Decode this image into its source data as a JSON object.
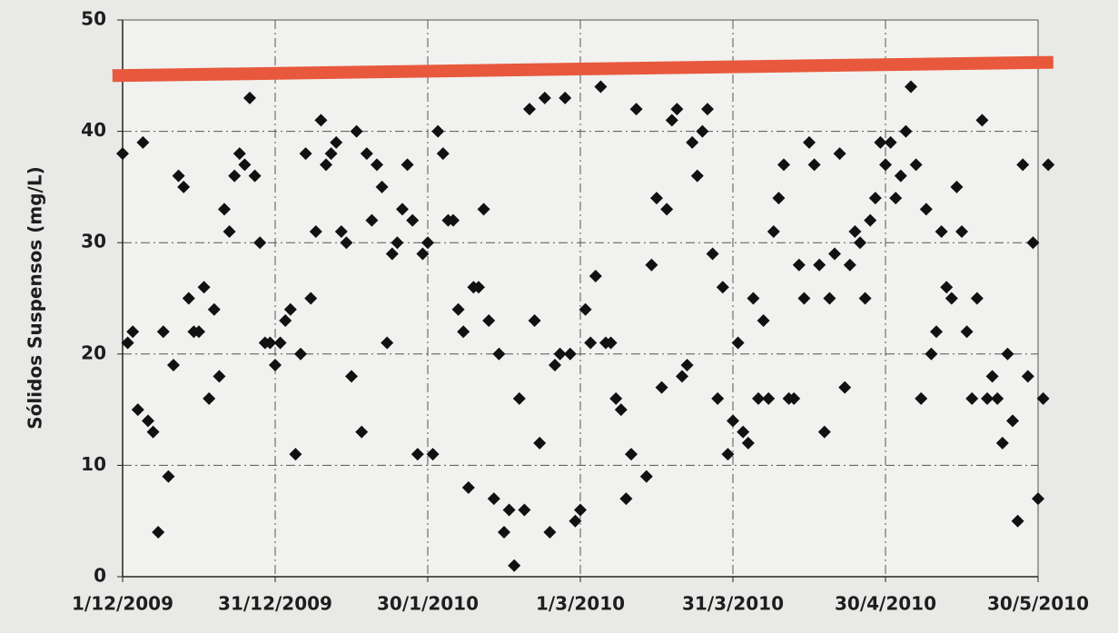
{
  "chart_data": {
    "type": "scatter",
    "ylabel": "Sólidos Suspensos (mg/L)",
    "ylim": [
      0,
      50
    ],
    "yticks": [
      0,
      10,
      20,
      30,
      40,
      50
    ],
    "xlim": [
      "1/12/2009",
      "30/5/2010"
    ],
    "xticks": [
      "1/12/2009",
      "31/12/2009",
      "30/1/2010",
      "1/3/2010",
      "31/3/2010",
      "30/4/2010",
      "30/5/2010"
    ],
    "grid": true,
    "series": [
      {
        "color": "#111111",
        "marker": "diamond",
        "x": [
          "1/12/2009",
          "2/12/2009",
          "3/12/2009",
          "4/12/2009",
          "5/12/2009",
          "6/12/2009",
          "7/12/2009",
          "8/12/2009",
          "9/12/2009",
          "10/12/2009",
          "11/12/2009",
          "12/12/2009",
          "13/12/2009",
          "14/12/2009",
          "15/12/2009",
          "16/12/2009",
          "17/12/2009",
          "18/12/2009",
          "19/12/2009",
          "20/12/2009",
          "21/12/2009",
          "22/12/2009",
          "23/12/2009",
          "24/12/2009",
          "25/12/2009",
          "26/12/2009",
          "27/12/2009",
          "28/12/2009",
          "29/12/2009",
          "30/12/2009",
          "31/12/2009",
          "1/1/2010",
          "2/1/2010",
          "3/1/2010",
          "4/1/2010",
          "5/1/2010",
          "6/1/2010",
          "7/1/2010",
          "8/1/2010",
          "9/1/2010",
          "10/1/2010",
          "11/1/2010",
          "12/1/2010",
          "13/1/2010",
          "14/1/2010",
          "15/1/2010",
          "16/1/2010",
          "17/1/2010",
          "18/1/2010",
          "19/1/2010",
          "20/1/2010",
          "21/1/2010",
          "22/1/2010",
          "23/1/2010",
          "24/1/2010",
          "25/1/2010",
          "26/1/2010",
          "27/1/2010",
          "28/1/2010",
          "29/1/2010",
          "30/1/2010",
          "31/1/2010",
          "1/2/2010",
          "2/2/2010",
          "3/2/2010",
          "4/2/2010",
          "5/2/2010",
          "6/2/2010",
          "7/2/2010",
          "8/2/2010",
          "9/2/2010",
          "10/2/2010",
          "11/2/2010",
          "12/2/2010",
          "13/2/2010",
          "14/2/2010",
          "15/2/2010",
          "16/2/2010",
          "17/2/2010",
          "18/2/2010",
          "19/2/2010",
          "20/2/2010",
          "21/2/2010",
          "22/2/2010",
          "23/2/2010",
          "24/2/2010",
          "25/2/2010",
          "26/2/2010",
          "27/2/2010",
          "28/2/2010",
          "1/3/2010",
          "2/3/2010",
          "3/3/2010",
          "4/3/2010",
          "5/3/2010",
          "6/3/2010",
          "7/3/2010",
          "8/3/2010",
          "9/3/2010",
          "10/3/2010",
          "11/3/2010",
          "12/3/2010",
          "14/3/2010",
          "15/3/2010",
          "16/3/2010",
          "17/3/2010",
          "18/3/2010",
          "19/3/2010",
          "20/3/2010",
          "21/3/2010",
          "22/3/2010",
          "23/3/2010",
          "24/3/2010",
          "25/3/2010",
          "26/3/2010",
          "27/3/2010",
          "28/3/2010",
          "29/3/2010",
          "30/3/2010",
          "31/3/2010",
          "1/4/2010",
          "2/4/2010",
          "3/4/2010",
          "4/4/2010",
          "5/4/2010",
          "6/4/2010",
          "7/4/2010",
          "8/4/2010",
          "9/4/2010",
          "10/4/2010",
          "11/4/2010",
          "12/4/2010",
          "13/4/2010",
          "14/4/2010",
          "15/4/2010",
          "16/4/2010",
          "17/4/2010",
          "18/4/2010",
          "19/4/2010",
          "20/4/2010",
          "21/4/2010",
          "22/4/2010",
          "23/4/2010",
          "24/4/2010",
          "25/4/2010",
          "26/4/2010",
          "27/4/2010",
          "28/4/2010",
          "29/4/2010",
          "30/4/2010",
          "1/5/2010",
          "2/5/2010",
          "3/5/2010",
          "4/5/2010",
          "5/5/2010",
          "6/5/2010",
          "7/5/2010",
          "8/5/2010",
          "9/5/2010",
          "10/5/2010",
          "11/5/2010",
          "12/5/2010",
          "13/5/2010",
          "14/5/2010",
          "15/5/2010",
          "16/5/2010",
          "17/5/2010",
          "18/5/2010",
          "19/5/2010",
          "20/5/2010",
          "21/5/2010",
          "22/5/2010",
          "23/5/2010",
          "24/5/2010",
          "25/5/2010",
          "26/5/2010",
          "27/5/2010",
          "28/5/2010",
          "29/5/2010",
          "30/5/2010",
          "31/5/2010",
          "1/6/2010"
        ],
        "values": [
          38,
          21,
          22,
          15,
          39,
          14,
          13,
          4,
          22,
          9,
          19,
          36,
          35,
          25,
          22,
          22,
          26,
          16,
          24,
          18,
          33,
          31,
          36,
          38,
          37,
          43,
          36,
          30,
          21,
          21,
          19,
          21,
          23,
          24,
          11,
          20,
          38,
          25,
          31,
          41,
          37,
          38,
          39,
          31,
          30,
          18,
          40,
          13,
          38,
          32,
          37,
          35,
          21,
          29,
          30,
          33,
          37,
          32,
          11,
          29,
          30,
          11,
          40,
          38,
          32,
          32,
          24,
          22,
          8,
          26,
          26,
          33,
          23,
          7,
          20,
          4,
          6,
          1,
          16,
          6,
          42,
          23,
          12,
          43,
          4,
          19,
          20,
          43,
          20,
          5,
          6,
          24,
          21,
          27,
          44,
          21,
          21,
          16,
          15,
          7,
          11,
          42,
          9,
          28,
          34,
          17,
          33,
          41,
          42,
          18,
          19,
          39,
          36,
          40,
          42,
          29,
          16,
          26,
          11,
          14,
          21,
          13,
          12,
          25,
          16,
          23,
          16,
          31,
          34,
          37,
          16,
          16,
          28,
          25,
          39,
          37,
          28,
          13,
          25,
          29,
          38,
          17,
          28,
          31,
          30,
          25,
          32,
          34,
          39,
          37,
          39,
          34,
          36,
          40,
          44,
          37,
          16,
          33,
          20,
          22,
          31,
          26,
          25,
          35,
          31,
          22,
          16,
          25,
          41,
          16,
          18,
          16,
          12,
          20,
          14,
          5,
          37,
          18,
          30,
          7,
          16,
          37
        ]
      }
    ],
    "lines": [
      {
        "color": "#e8583c",
        "x": [
          "29/11/2009",
          "2/6/2010"
        ],
        "values": [
          45,
          46.2
        ]
      }
    ]
  }
}
